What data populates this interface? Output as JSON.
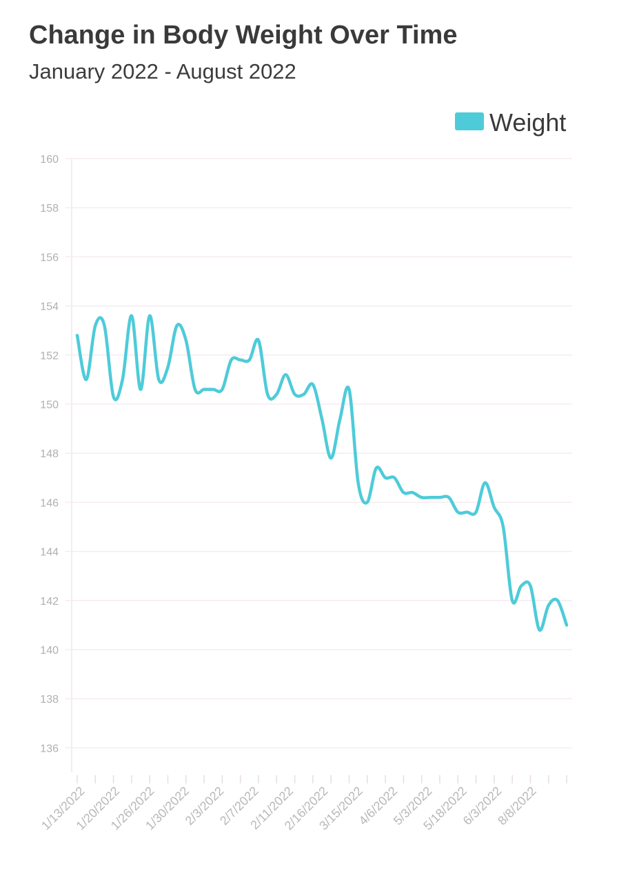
{
  "chart_data": {
    "type": "line",
    "title": "Change in Body Weight Over Time",
    "subtitle": "January 2022 - August 2022",
    "legend": {
      "position": "top-right",
      "entries": [
        "Weight"
      ]
    },
    "grid": true,
    "ylim": [
      135,
      160
    ],
    "yticks": [
      136,
      138,
      140,
      142,
      144,
      146,
      148,
      150,
      152,
      154,
      156,
      158,
      160
    ],
    "x_tick_labels": [
      "1/13/2022",
      "1/20/2022",
      "1/26/2022",
      "1/30/2022",
      "2/3/2022",
      "2/7/2022",
      "2/11/2022",
      "2/16/2022",
      "3/15/2022",
      "4/6/2022",
      "5/3/2022",
      "5/18/2022",
      "6/3/2022",
      "8/8/2022"
    ],
    "series": [
      {
        "name": "Weight",
        "color": "#4ecbd9",
        "values": [
          152.8,
          151.0,
          153.2,
          153.2,
          150.3,
          151.0,
          153.6,
          150.6,
          153.6,
          151.0,
          151.5,
          153.2,
          152.6,
          150.6,
          150.6,
          150.6,
          150.6,
          151.8,
          151.8,
          151.8,
          152.6,
          150.4,
          150.4,
          151.2,
          150.4,
          150.4,
          150.8,
          149.4,
          147.8,
          149.4,
          150.6,
          146.8,
          146.0,
          147.4,
          147.0,
          147.0,
          146.4,
          146.4,
          146.2,
          146.2,
          146.2,
          146.2,
          145.6,
          145.6,
          145.6,
          146.8,
          145.8,
          145.0,
          142.0,
          142.6,
          142.6,
          140.8,
          141.8,
          142.0,
          141.0
        ]
      }
    ]
  }
}
